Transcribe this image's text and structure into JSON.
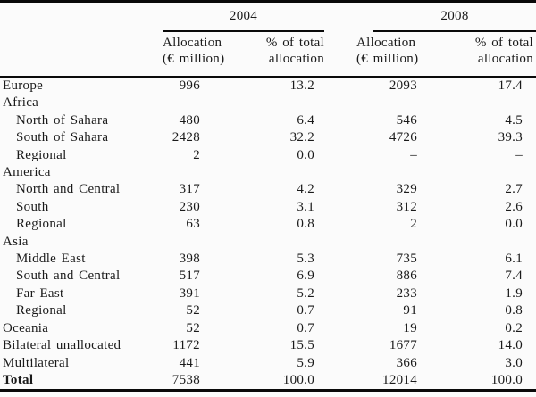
{
  "table": {
    "year_groups": [
      {
        "label": "2004"
      },
      {
        "label": "2008"
      }
    ],
    "col_headers": {
      "alloc_line1": "Allocation",
      "alloc_line2": "(€ million)",
      "pct_line1": "% of total",
      "pct_line2": "allocation"
    },
    "rows": [
      {
        "label": "Europe",
        "alloc_2004": "996",
        "pct_2004": "13.2",
        "alloc_2008": "2093",
        "pct_2008": "17.4"
      },
      {
        "label": "Africa"
      },
      {
        "label": "North of Sahara",
        "alloc_2004": "480",
        "pct_2004": "6.4",
        "alloc_2008": "546",
        "pct_2008": "4.5"
      },
      {
        "label": "South of Sahara",
        "alloc_2004": "2428",
        "pct_2004": "32.2",
        "alloc_2008": "4726",
        "pct_2008": "39.3"
      },
      {
        "label": "Regional",
        "alloc_2004": "2",
        "pct_2004": "0.0",
        "alloc_2008": "–",
        "pct_2008": "–"
      },
      {
        "label": "America"
      },
      {
        "label": "North and Central",
        "alloc_2004": "317",
        "pct_2004": "4.2",
        "alloc_2008": "329",
        "pct_2008": "2.7"
      },
      {
        "label": "South",
        "alloc_2004": "230",
        "pct_2004": "3.1",
        "alloc_2008": "312",
        "pct_2008": "2.6"
      },
      {
        "label": "Regional",
        "alloc_2004": "63",
        "pct_2004": "0.8",
        "alloc_2008": "2",
        "pct_2008": "0.0"
      },
      {
        "label": "Asia"
      },
      {
        "label": "Middle East",
        "alloc_2004": "398",
        "pct_2004": "5.3",
        "alloc_2008": "735",
        "pct_2008": "6.1"
      },
      {
        "label": "South and Central",
        "alloc_2004": "517",
        "pct_2004": "6.9",
        "alloc_2008": "886",
        "pct_2008": "7.4"
      },
      {
        "label": "Far East",
        "alloc_2004": "391",
        "pct_2004": "5.2",
        "alloc_2008": "233",
        "pct_2008": "1.9"
      },
      {
        "label": "Regional",
        "alloc_2004": "52",
        "pct_2004": "0.7",
        "alloc_2008": "91",
        "pct_2008": "0.8"
      },
      {
        "label": "Oceania",
        "alloc_2004": "52",
        "pct_2004": "0.7",
        "alloc_2008": "19",
        "pct_2008": "0.2"
      },
      {
        "label": "Bilateral unallocated",
        "alloc_2004": "1172",
        "pct_2004": "15.5",
        "alloc_2008": "1677",
        "pct_2008": "14.0"
      },
      {
        "label": "Multilateral",
        "alloc_2004": "441",
        "pct_2004": "5.9",
        "alloc_2008": "366",
        "pct_2008": "3.0"
      },
      {
        "label": "Total",
        "alloc_2004": "7538",
        "pct_2004": "100.0",
        "alloc_2008": "12014",
        "pct_2008": "100.0"
      }
    ]
  }
}
